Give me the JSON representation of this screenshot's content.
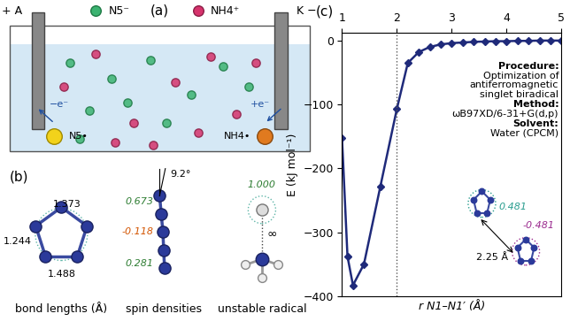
{
  "chart_data": {
    "type": "line",
    "label": "(c)",
    "x": [
      1.0,
      1.1,
      1.2,
      1.4,
      1.7,
      2.0,
      2.2,
      2.4,
      2.6,
      2.8,
      3.0,
      3.2,
      3.4,
      3.6,
      3.8,
      4.0,
      4.2,
      4.4,
      4.6,
      4.8,
      5.0
    ],
    "values": [
      -152,
      -338,
      -383,
      -350,
      -228,
      -107,
      -35,
      -18,
      -10,
      -6,
      -4,
      -3,
      -2,
      -1.5,
      -1,
      -1,
      -0.5,
      -0.5,
      0,
      0,
      0
    ],
    "color": "#1f2a7a",
    "marker": "diamond",
    "line_style": "solid",
    "xlim": [
      1,
      5
    ],
    "ylim": [
      -400,
      12
    ],
    "xticks": [
      1,
      2,
      3,
      4,
      5
    ],
    "yticks": [
      0,
      {
        "value": -100,
        "label": "−100"
      },
      {
        "value": -200,
        "label": "−200"
      },
      {
        "value": -300,
        "label": "−300"
      },
      {
        "value": -400,
        "label": "−400"
      }
    ],
    "xlabel": "r N1–N1′ (Å)",
    "ylabel": "E (kJ mol⁻¹)",
    "reference_x": 2,
    "annotation": [
      {
        "heading": "Procedure:",
        "text": [
          "Optimization of",
          "antiferromagnetic",
          "singlet biradical"
        ]
      },
      {
        "heading": "Method:",
        "text": [
          "ωB97XD/6-31+G(d,p)"
        ]
      },
      {
        "heading": "Solvent:",
        "text": [
          "Water (CPCM)"
        ]
      }
    ],
    "inset": {
      "spins": [
        "0.481",
        "-0.481"
      ],
      "distance": "2.25 Å"
    }
  },
  "panel_a": {
    "label": "(a)",
    "anode": "+ A",
    "cathode": "K −",
    "anion": "N5⁻",
    "cation": "NH4⁺",
    "oxidation": "−e⁻",
    "reduction": "+e⁻",
    "anion_radical": "N5•",
    "cation_radical": "NH4•"
  },
  "panel_b": {
    "label": "(b)",
    "bond_lengths": [
      "1.373",
      "1.244",
      "1.488"
    ],
    "angle": "9.2°",
    "spin_densities": [
      "0.673",
      "-0.118",
      "0.281"
    ],
    "radical_spin": "1.000",
    "radical_distance": "∞",
    "captions": [
      "bond lengths (Å)",
      "spin densities",
      "unstable radical"
    ]
  }
}
